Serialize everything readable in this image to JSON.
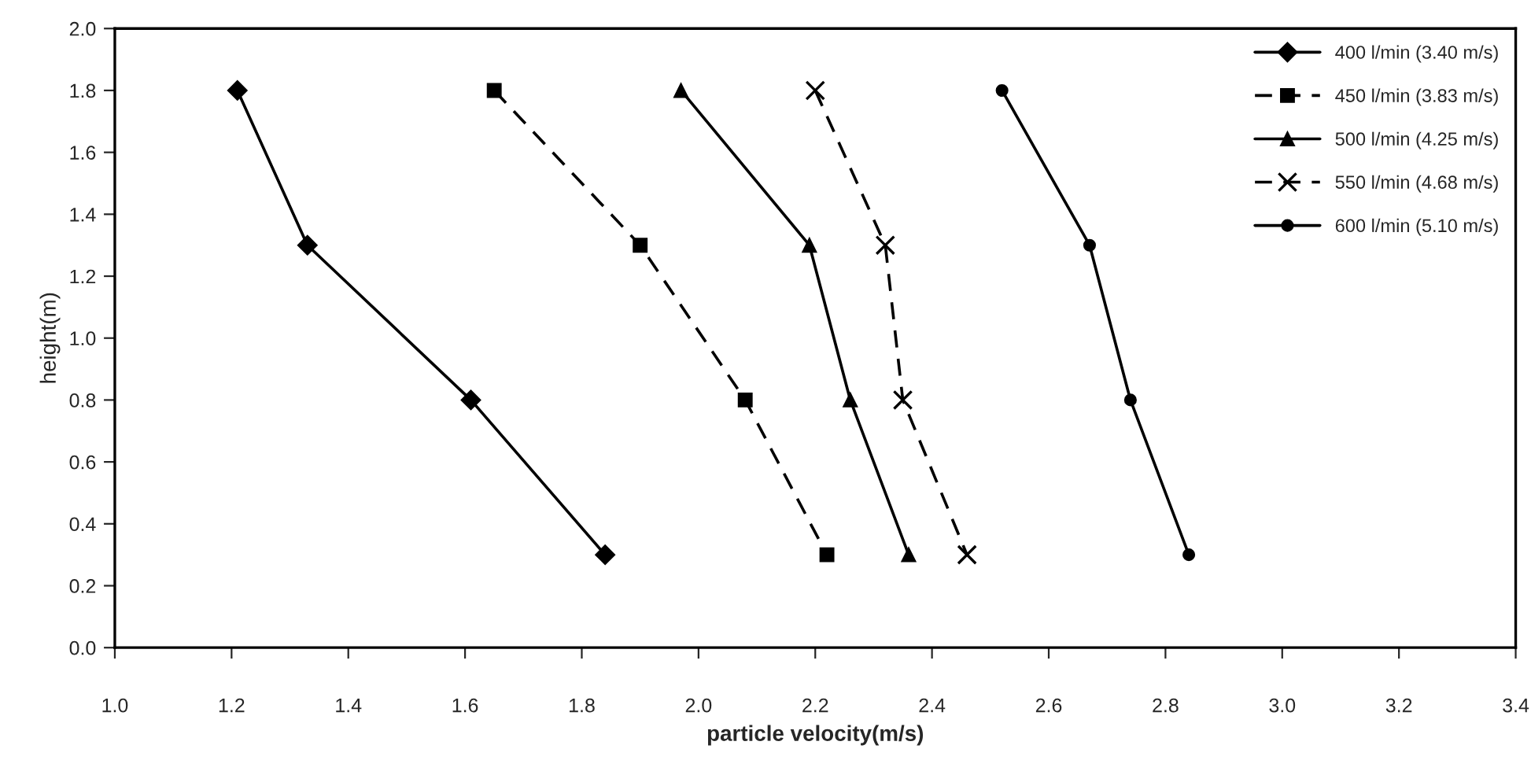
{
  "chart_data": {
    "type": "line",
    "xlabel": "particle velocity(m/s)",
    "ylabel": "height(m)",
    "xlim": [
      1.0,
      3.4
    ],
    "xticks": [
      {
        "value": 1.0,
        "label": "1.0"
      },
      1.2,
      1.4,
      1.6,
      1.8,
      {
        "value": 2.0,
        "label": "2.0"
      },
      2.2,
      2.4,
      2.6,
      2.8,
      {
        "value": 3.0,
        "label": "3.0"
      },
      3.2,
      3.4
    ],
    "ylim": [
      0.0,
      2.0
    ],
    "yticks": [
      {
        "value": 0.0,
        "label": "0.0"
      },
      0.2,
      0.4,
      0.6,
      0.8,
      {
        "value": 1.0,
        "label": "1.0"
      },
      1.2,
      1.4,
      1.6,
      1.8,
      {
        "value": 2.0,
        "label": "2.0"
      }
    ],
    "grid": false,
    "legend": "top right",
    "series": [
      {
        "name": "400 l/min (3.40 m/s)",
        "color": "#000000",
        "marker": "diamond",
        "line_style": "solid",
        "x": [
          1.21,
          1.33,
          1.61,
          1.84
        ],
        "values": [
          1.8,
          1.3,
          0.8,
          0.3
        ]
      },
      {
        "name": "450 l/min (3.83 m/s)",
        "color": "#000000",
        "marker": "square",
        "line_style": "dashed",
        "x": [
          1.65,
          1.9,
          2.08,
          2.22
        ],
        "values": [
          1.8,
          1.3,
          0.8,
          0.3
        ]
      },
      {
        "name": "500 l/min (4.25 m/s)",
        "color": "#000000",
        "marker": "triangle",
        "line_style": "solid",
        "x": [
          1.97,
          2.19,
          2.26,
          2.36
        ],
        "values": [
          1.8,
          1.3,
          0.8,
          0.3
        ]
      },
      {
        "name": "550 l/min (4.68 m/s)",
        "color": "#000000",
        "marker": "cross",
        "line_style": "dashed",
        "x": [
          2.2,
          2.32,
          2.35,
          2.46
        ],
        "values": [
          1.8,
          1.3,
          0.8,
          0.3
        ]
      },
      {
        "name": "600 l/min (5.10 m/s)",
        "color": "#000000",
        "marker": "circle",
        "line_style": "solid",
        "x": [
          2.52,
          2.67,
          2.74,
          2.84
        ],
        "values": [
          1.8,
          1.3,
          0.8,
          0.3
        ]
      }
    ]
  }
}
